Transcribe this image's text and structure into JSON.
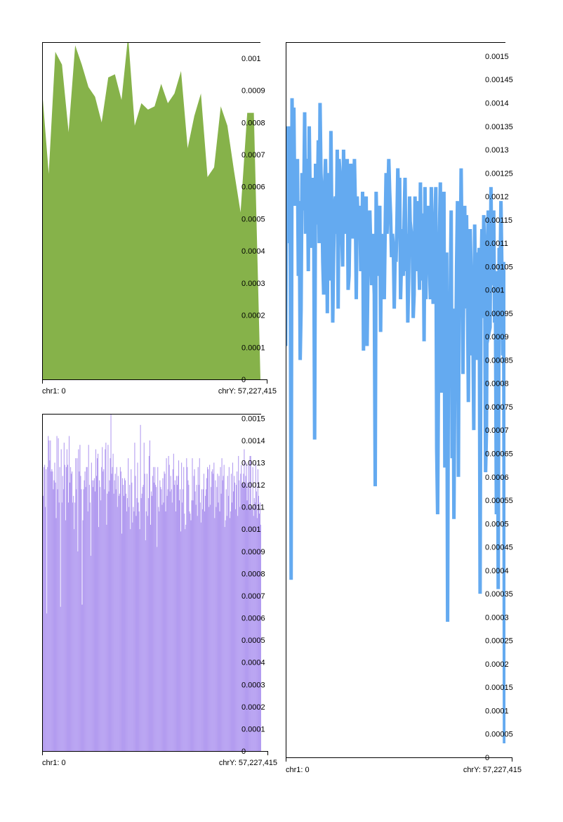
{
  "colors": {
    "green": "#86b24a",
    "purple": "#b39cf0",
    "blue": "#64aaf0",
    "frame": "#000000"
  },
  "chart_data": [
    {
      "type": "area",
      "id": "top-left",
      "color": "#86b24a",
      "x_labels": {
        "start": "chr1: 0",
        "end": "chrY: 57,227,415"
      },
      "ylim": [
        0,
        0.00105
      ],
      "y_ticks": [
        {
          "value": 0,
          "label": "0"
        },
        {
          "value": 0.0001,
          "label": "0.0001"
        },
        {
          "value": 0.0002,
          "label": "0.0002"
        },
        {
          "value": 0.0003,
          "label": "0.0003"
        },
        {
          "value": 0.0004,
          "label": "0.0004"
        },
        {
          "value": 0.0005,
          "label": "0.0005"
        },
        {
          "value": 0.0006,
          "label": "0.0006"
        },
        {
          "value": 0.0007,
          "label": "0.0007"
        },
        {
          "value": 0.0008,
          "label": "0.0008"
        },
        {
          "value": 0.0009,
          "label": "0.0009"
        },
        {
          "value": 0.001,
          "label": "0.001"
        }
      ],
      "values": [
        0.0009,
        0.00064,
        0.00102,
        0.00098,
        0.00077,
        0.00104,
        0.00098,
        0.00091,
        0.00088,
        0.0008,
        0.00094,
        0.00095,
        0.00087,
        0.00107,
        0.00079,
        0.00086,
        0.00084,
        0.00085,
        0.00092,
        0.00086,
        0.00089,
        0.00096,
        0.00072,
        0.00082,
        0.00089,
        0.00063,
        0.00066,
        0.00085,
        0.00079,
        0.00065,
        0.00052,
        0.00083,
        0.00083,
        0.0
      ]
    },
    {
      "type": "bar",
      "id": "bottom-left",
      "color": "#b39cf0",
      "x_labels": {
        "start": "chr1: 0",
        "end": "chrY: 57,227,415"
      },
      "ylim": [
        0,
        0.00152
      ],
      "y_ticks": [
        {
          "value": 0,
          "label": "0"
        },
        {
          "value": 0.0001,
          "label": "0.0001"
        },
        {
          "value": 0.0002,
          "label": "0.0002"
        },
        {
          "value": 0.0003,
          "label": "0.0003"
        },
        {
          "value": 0.0004,
          "label": "0.0004"
        },
        {
          "value": 0.0005,
          "label": "0.0005"
        },
        {
          "value": 0.0006,
          "label": "0.0006"
        },
        {
          "value": 0.0007,
          "label": "0.0007"
        },
        {
          "value": 0.0008,
          "label": "0.0008"
        },
        {
          "value": 0.0009,
          "label": "0.0009"
        },
        {
          "value": 0.001,
          "label": "0.001"
        },
        {
          "value": 0.0011,
          "label": "0.0011"
        },
        {
          "value": 0.0012,
          "label": "0.0012"
        },
        {
          "value": 0.0013,
          "label": "0.0013"
        },
        {
          "value": 0.0014,
          "label": "0.0014"
        },
        {
          "value": 0.0015,
          "label": "0.0015"
        }
      ],
      "values": [
        0.00088,
        0.00115,
        0.00128,
        0.00129,
        0.0011,
        0.00127,
        0.00062,
        0.00128,
        0.00142,
        0.0014,
        0.00131,
        0.0014,
        0.00126,
        0.00127,
        0.00126,
        0.00118,
        0.00122,
        0.0013,
        0.00121,
        0.00105,
        0.00142,
        0.00118,
        0.00141,
        0.00112,
        0.00128,
        0.00065,
        0.00136,
        0.00112,
        0.00124,
        0.00118,
        0.00139,
        0.00129,
        0.00104,
        0.00128,
        0.00136,
        0.00129,
        0.00112,
        0.00142,
        0.00121,
        0.00128,
        0.00125,
        0.00126,
        0.00112,
        0.00115,
        0.001,
        0.00112,
        0.00132,
        0.00118,
        0.00132,
        0.0009,
        0.00136,
        0.00126,
        0.00138,
        0.00124,
        0.00118,
        0.00066,
        0.00104,
        0.00118,
        0.00122,
        0.00126,
        0.00119,
        0.00128,
        0.00128,
        0.00108,
        0.00138,
        0.0012,
        0.00112,
        0.00088,
        0.0013,
        0.00122,
        0.00119,
        0.00122,
        0.00123,
        0.00117,
        0.00136,
        0.00124,
        0.00132,
        0.00134,
        0.00101,
        0.00122,
        0.00119,
        0.00113,
        0.00128,
        0.00137,
        0.00126,
        0.00127,
        0.00118,
        0.00136,
        0.00139,
        0.00102,
        0.00116,
        0.00138,
        0.00117,
        0.00122,
        0.00132,
        0.00152,
        0.00125,
        0.00128,
        0.00134,
        0.00116,
        0.00122,
        0.00125,
        0.00118,
        0.00128,
        0.0011,
        0.00124,
        0.00115,
        0.00116,
        0.00128,
        0.00126,
        0.00098,
        0.00123,
        0.0012,
        0.00115,
        0.00123,
        0.00122,
        0.00116,
        0.00108,
        0.00114,
        0.00132,
        0.0011,
        0.0012,
        0.001,
        0.00127,
        0.00121,
        0.00103,
        0.0011,
        0.00108,
        0.00139,
        0.00124,
        0.00106,
        0.00114,
        0.0013,
        0.00112,
        0.00108,
        0.001,
        0.00147,
        0.00114,
        0.00116,
        0.00119,
        0.0012,
        0.00139,
        0.00125,
        0.00095,
        0.00108,
        0.00125,
        0.00106,
        0.00114,
        0.00133,
        0.0014,
        0.00102,
        0.00117,
        0.00115,
        0.00124,
        0.00128,
        0.00121,
        0.00128,
        0.0012,
        0.00119,
        0.00092,
        0.00128,
        0.0011,
        0.00108,
        0.00122,
        0.00119,
        0.00118,
        0.00111,
        0.00123,
        0.00112,
        0.00126,
        0.00125,
        0.00108,
        0.00132,
        0.00115,
        0.00118,
        0.00133,
        0.00129,
        0.00117,
        0.00124,
        0.00118,
        0.00112,
        0.00127,
        0.00134,
        0.0012,
        0.00122,
        0.00108,
        0.00124,
        0.0012,
        0.00124,
        0.00131,
        0.00113,
        0.00118,
        0.00099,
        0.0013,
        0.00112,
        0.00118,
        0.00128,
        0.00107,
        0.001,
        0.00102,
        0.00132,
        0.00128,
        0.00122,
        0.0012,
        0.00108,
        0.00107,
        0.00104,
        0.00113,
        0.00132,
        0.00113,
        0.00124,
        0.00127,
        0.00117,
        0.00111,
        0.0012,
        0.00106,
        0.00128,
        0.0012,
        0.00132,
        0.00112,
        0.00103,
        0.00118,
        0.00109,
        0.00118,
        0.00125,
        0.00108,
        0.00115,
        0.00118,
        0.00123,
        0.00128,
        0.00127,
        0.0011,
        0.00129,
        0.00111,
        0.00119,
        0.00126,
        0.00127,
        0.00125,
        0.0013,
        0.00105,
        0.00122,
        0.0011,
        0.00119,
        0.00125,
        0.00112,
        0.00124,
        0.00108,
        0.00128,
        0.00116,
        0.00132,
        0.00122,
        0.00124,
        0.00129,
        0.00101,
        0.00104,
        0.00118,
        0.00106,
        0.00124,
        0.00115,
        0.00128,
        0.00105,
        0.00108,
        0.00125,
        0.00112,
        0.0013,
        0.00117,
        0.00124,
        0.00121,
        0.00109,
        0.0012,
        0.00126,
        0.00106,
        0.00133,
        0.00122,
        0.0011,
        0.00125,
        0.00129,
        0.00119,
        0.00121,
        0.00125,
        0.00136,
        0.0012,
        0.00124,
        0.0013,
        0.00113,
        0.00121,
        0.00129,
        0.0011,
        0.00133,
        0.00133,
        0.00109,
        0.0011,
        0.00128,
        0.00106,
        0.00114,
        0.00112,
        0.0013,
        0.00117,
        0.00105,
        0.00127,
        0.00115,
        0.00107,
        0.00112,
        0.00102
      ]
    },
    {
      "type": "line",
      "id": "right",
      "color": "#64aaf0",
      "x_labels": {
        "start": "chr1: 0",
        "end": "chrY: 57,227,415"
      },
      "ylim": [
        0,
        0.00153
      ],
      "y_ticks": [
        {
          "value": 0,
          "label": "0"
        },
        {
          "value": 5e-05,
          "label": "0.00005"
        },
        {
          "value": 0.0001,
          "label": "0.0001"
        },
        {
          "value": 0.00015,
          "label": "0.00015"
        },
        {
          "value": 0.0002,
          "label": "0.0002"
        },
        {
          "value": 0.00025,
          "label": "0.00025"
        },
        {
          "value": 0.0003,
          "label": "0.0003"
        },
        {
          "value": 0.00035,
          "label": "0.00035"
        },
        {
          "value": 0.0004,
          "label": "0.0004"
        },
        {
          "value": 0.00045,
          "label": "0.00045"
        },
        {
          "value": 0.0005,
          "label": "0.0005"
        },
        {
          "value": 0.00055,
          "label": "0.00055"
        },
        {
          "value": 0.0006,
          "label": "0.0006"
        },
        {
          "value": 0.00065,
          "label": "0.00065"
        },
        {
          "value": 0.0007,
          "label": "0.0007"
        },
        {
          "value": 0.00075,
          "label": "0.00075"
        },
        {
          "value": 0.0008,
          "label": "0.0008"
        },
        {
          "value": 0.00085,
          "label": "0.00085"
        },
        {
          "value": 0.0009,
          "label": "0.0009"
        },
        {
          "value": 0.00095,
          "label": "0.00095"
        },
        {
          "value": 0.001,
          "label": "0.001"
        },
        {
          "value": 0.00105,
          "label": "0.00105"
        },
        {
          "value": 0.0011,
          "label": "0.0011"
        },
        {
          "value": 0.00115,
          "label": "0.00115"
        },
        {
          "value": 0.0012,
          "label": "0.0012"
        },
        {
          "value": 0.00125,
          "label": "0.00125"
        },
        {
          "value": 0.0013,
          "label": "0.0013"
        },
        {
          "value": 0.00135,
          "label": "0.00135"
        },
        {
          "value": 0.0014,
          "label": "0.0014"
        },
        {
          "value": 0.00145,
          "label": "0.00145"
        },
        {
          "value": 0.0015,
          "label": "0.0015"
        }
      ],
      "values": [
        0.00088,
        0.00128,
        0.00135,
        0.0011,
        0.00135,
        0.0012,
        0.00038,
        0.00141,
        0.00125,
        0.00139,
        0.00118,
        0.00125,
        0.00122,
        0.00128,
        0.00103,
        0.00119,
        0.00085,
        0.00096,
        0.00125,
        0.00117,
        0.0012,
        0.00138,
        0.00112,
        0.00127,
        0.00128,
        0.00104,
        0.00135,
        0.0012,
        0.00124,
        0.00109,
        0.00124,
        0.00115,
        0.00068,
        0.00127,
        0.00114,
        0.00118,
        0.00132,
        0.0011,
        0.0014,
        0.00125,
        0.0012,
        0.00106,
        0.00099,
        0.00122,
        0.00128,
        0.00117,
        0.00095,
        0.00125,
        0.0011,
        0.00102,
        0.00134,
        0.00115,
        0.00093,
        0.00108,
        0.00118,
        0.0012,
        0.00112,
        0.0013,
        0.00096,
        0.00128,
        0.00125,
        0.00115,
        0.00112,
        0.00105,
        0.0013,
        0.00118,
        0.00112,
        0.00118,
        0.00128,
        0.001,
        0.00103,
        0.00115,
        0.00127,
        0.0012,
        0.00111,
        0.00115,
        0.00128,
        0.00118,
        0.00098,
        0.0012,
        0.00115,
        0.00112,
        0.00118,
        0.00104,
        0.00109,
        0.00121,
        0.00087,
        0.00115,
        0.00113,
        0.0012,
        0.00088,
        0.00105,
        0.00108,
        0.00117,
        0.00109,
        0.00101,
        0.00112,
        0.00105,
        0.00099,
        0.00058,
        0.00121,
        0.00111,
        0.00103,
        0.00116,
        0.00118,
        0.00091,
        0.00112,
        0.00106,
        0.00107,
        0.00098,
        0.00113,
        0.00125,
        0.00112,
        0.0012,
        0.00128,
        0.00121,
        0.00116,
        0.00107,
        0.00112,
        0.00109,
        0.00096,
        0.00108,
        0.00106,
        0.00114,
        0.00126,
        0.00117,
        0.00124,
        0.00098,
        0.00106,
        0.00113,
        0.00103,
        0.00115,
        0.00124,
        0.00104,
        0.00112,
        0.00093,
        0.00103,
        0.0012,
        0.00111,
        0.00112,
        0.0011,
        0.00094,
        0.00099,
        0.0012,
        0.00104,
        0.00119,
        0.00115,
        0.00108,
        0.001,
        0.00123,
        0.00102,
        0.00116,
        0.00116,
        0.00089,
        0.00122,
        0.00098,
        0.00114,
        0.00118,
        0.00108,
        0.00105,
        0.00098,
        0.00122,
        0.00108,
        0.00097,
        0.00106,
        0.00114,
        0.00122,
        0.00066,
        0.00052,
        0.00084,
        0.00112,
        0.00123,
        0.00078,
        0.00111,
        0.00101,
        0.00121,
        0.00062,
        0.00088,
        0.00108,
        0.00029,
        0.00093,
        0.00088,
        0.00099,
        0.00117,
        0.00064,
        0.00096,
        0.00051,
        0.00083,
        0.00084,
        0.00105,
        0.00119,
        0.0006,
        0.00112,
        0.00104,
        0.00126,
        0.00107,
        0.00082,
        0.00103,
        0.00118,
        0.00096,
        0.00116,
        0.001,
        0.00076,
        0.0011,
        0.00113,
        0.00104,
        0.00086,
        0.00091,
        0.0007,
        0.00114,
        0.00096,
        0.00108,
        0.00085,
        0.00101,
        0.00109,
        0.00035,
        0.00103,
        0.00113,
        0.00094,
        0.00116,
        0.00107,
        0.00061,
        0.0007,
        0.00108,
        0.00117,
        0.00091,
        0.00092,
        0.00122,
        0.00101,
        0.00107,
        0.00117,
        0.00093,
        0.00097,
        0.00052,
        0.00104,
        0.00036,
        0.00109,
        0.00102,
        0.00119,
        0.00106,
        0.00086,
        0.00106,
        3e-05,
        0.00104
      ]
    }
  ]
}
